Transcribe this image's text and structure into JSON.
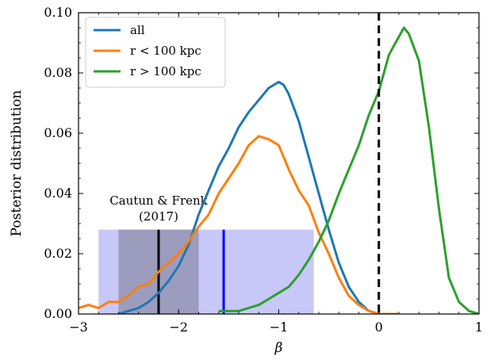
{
  "chart_data": {
    "type": "line",
    "xlabel": "β",
    "ylabel": "Posterior distribution",
    "xlim": [
      -3,
      1
    ],
    "ylim": [
      0,
      0.1
    ],
    "x_ticks": [
      "−3",
      "−2",
      "−1",
      "0",
      "1"
    ],
    "x_tick_values": [
      -3,
      -2,
      -1,
      0,
      1
    ],
    "y_ticks": [
      "0.00",
      "0.02",
      "0.04",
      "0.06",
      "0.08",
      "0.10"
    ],
    "y_tick_values": [
      0,
      0.02,
      0.04,
      0.06,
      0.08,
      0.1
    ],
    "legend": {
      "placement": "top-left",
      "entries": [
        "all",
        "r < 100 kpc",
        "r > 100 kpc"
      ]
    },
    "colors": {
      "all": "#1f77b4",
      "r < 100 kpc": "#ff7f0e",
      "r > 100 kpc": "#2ca02c",
      "reference_band_outer": "#c8c8f8",
      "reference_band_inner": "#9c9cbe",
      "reference_line_blue": "#0000ff"
    },
    "series": [
      {
        "name": "all",
        "x": [
          -2.6,
          -2.5,
          -2.4,
          -2.3,
          -2.2,
          -2.1,
          -2.0,
          -1.9,
          -1.8,
          -1.7,
          -1.6,
          -1.5,
          -1.4,
          -1.3,
          -1.2,
          -1.1,
          -1.0,
          -0.95,
          -0.9,
          -0.8,
          -0.7,
          -0.6,
          -0.5,
          -0.4,
          -0.3,
          -0.2,
          -0.1,
          0.0,
          0.1,
          0.2
        ],
        "y": [
          0.0,
          0.001,
          0.002,
          0.004,
          0.007,
          0.011,
          0.016,
          0.023,
          0.033,
          0.041,
          0.049,
          0.055,
          0.062,
          0.067,
          0.071,
          0.075,
          0.077,
          0.076,
          0.073,
          0.064,
          0.052,
          0.04,
          0.028,
          0.017,
          0.009,
          0.004,
          0.001,
          0.0,
          0.0,
          0.0
        ]
      },
      {
        "name": "r < 100 kpc",
        "x": [
          -3.0,
          -2.9,
          -2.8,
          -2.7,
          -2.6,
          -2.5,
          -2.4,
          -2.3,
          -2.2,
          -2.1,
          -2.0,
          -1.9,
          -1.8,
          -1.7,
          -1.6,
          -1.5,
          -1.4,
          -1.3,
          -1.2,
          -1.1,
          -1.0,
          -0.9,
          -0.8,
          -0.7,
          -0.6,
          -0.5,
          -0.4,
          -0.3,
          -0.2,
          -0.1,
          0.0,
          0.1,
          0.2
        ],
        "y": [
          0.002,
          0.003,
          0.002,
          0.004,
          0.004,
          0.006,
          0.009,
          0.01,
          0.014,
          0.017,
          0.02,
          0.024,
          0.029,
          0.033,
          0.04,
          0.045,
          0.05,
          0.056,
          0.059,
          0.058,
          0.056,
          0.048,
          0.041,
          0.036,
          0.027,
          0.02,
          0.012,
          0.006,
          0.003,
          0.001,
          0.0,
          0.0,
          0.0
        ]
      },
      {
        "name": "r > 100 kpc",
        "x": [
          -1.6,
          -1.5,
          -1.4,
          -1.3,
          -1.2,
          -1.1,
          -1.0,
          -0.9,
          -0.8,
          -0.7,
          -0.6,
          -0.5,
          -0.4,
          -0.3,
          -0.2,
          -0.1,
          0.0,
          0.1,
          0.2,
          0.25,
          0.3,
          0.4,
          0.5,
          0.6,
          0.7,
          0.8,
          0.9,
          1.0
        ],
        "y": [
          0.001,
          0.001,
          0.001,
          0.002,
          0.003,
          0.005,
          0.007,
          0.009,
          0.013,
          0.018,
          0.024,
          0.031,
          0.04,
          0.048,
          0.056,
          0.066,
          0.074,
          0.086,
          0.092,
          0.095,
          0.093,
          0.084,
          0.062,
          0.035,
          0.012,
          0.004,
          0.001,
          0.0
        ]
      }
    ],
    "reference": {
      "vertical_dashed_line_x": 0,
      "annotation": [
        "Cautun & Frenk",
        "(2017)"
      ],
      "outer_band": {
        "x_range": [
          -2.8,
          -0.65
        ],
        "y_top": 0.028
      },
      "inner_band": {
        "x_range": [
          -2.6,
          -1.8
        ],
        "y_top": 0.028
      },
      "black_line_x": -2.2,
      "blue_line_x": -1.55
    }
  }
}
